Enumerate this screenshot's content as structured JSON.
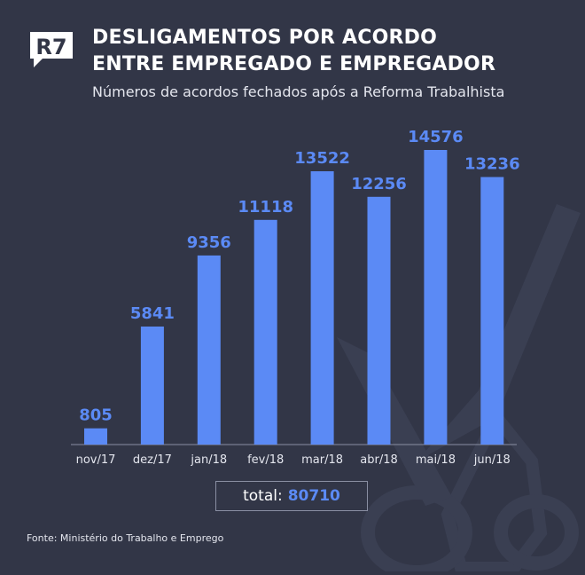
{
  "brand": {
    "logo_text": "R7"
  },
  "header": {
    "title_line1": "DESLIGAMENTOS POR ACORDO",
    "title_line2": "ENTRE EMPREGADO E EMPREGADOR",
    "subtitle": "Números de acordos fechados após a Reforma Trabalhista"
  },
  "total": {
    "label": "total:",
    "value": "80710"
  },
  "footer": {
    "source": "Fonte: Ministério do Trabalho e Emprego"
  },
  "colors": {
    "background": "#323647",
    "bar": "#5b8af5",
    "value_label": "#5b8af5",
    "watermark": "#3a3f52"
  },
  "icons": {
    "watermark": "scissors-icon"
  },
  "chart_data": {
    "type": "bar",
    "categories": [
      "nov/17",
      "dez/17",
      "jan/18",
      "fev/18",
      "mar/18",
      "abr/18",
      "mai/18",
      "jun/18"
    ],
    "values": [
      805,
      5841,
      9356,
      11118,
      13522,
      12256,
      14576,
      13236
    ],
    "title": "",
    "xlabel": "",
    "ylabel": "",
    "ylim": [
      0,
      14576
    ],
    "grid": false,
    "legend": "none"
  }
}
